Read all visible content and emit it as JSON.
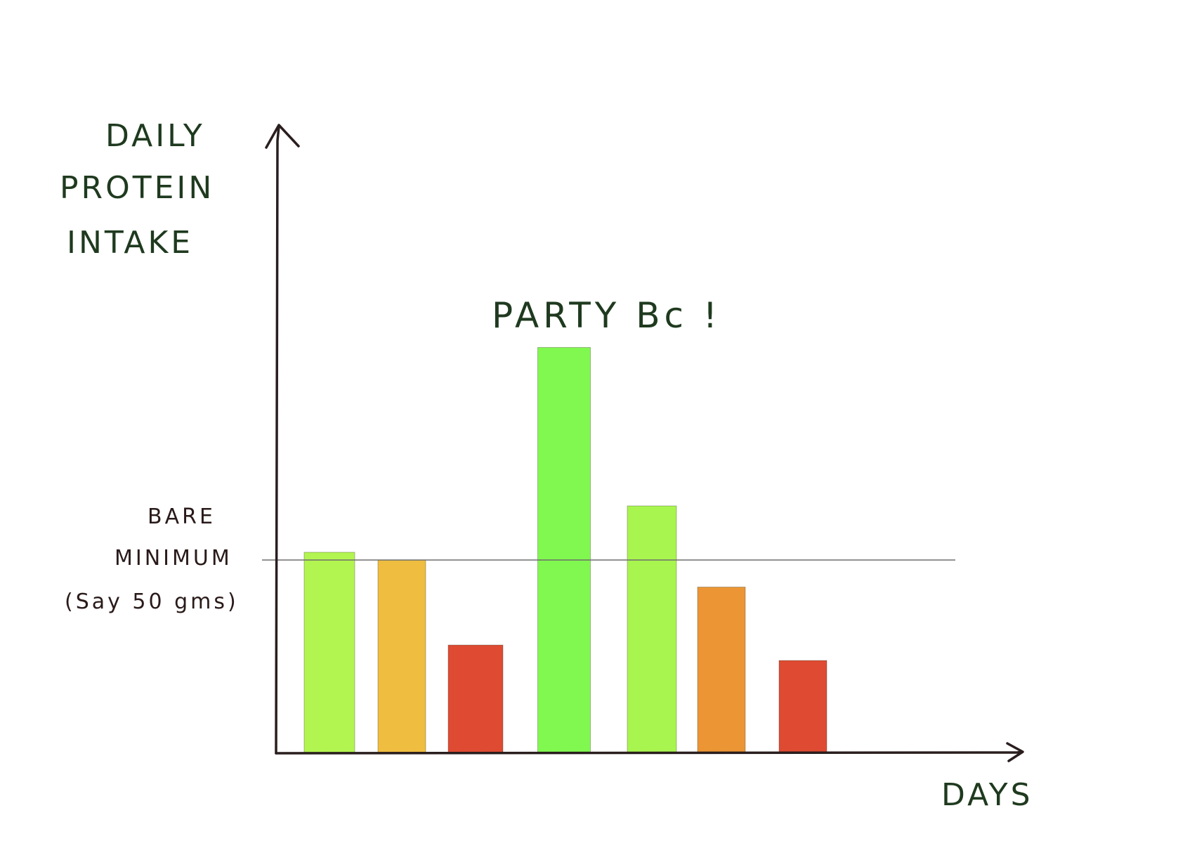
{
  "chart_data": {
    "type": "bar",
    "ylabel_lines": [
      "DAILY",
      "PROTEIN",
      "INTAKE"
    ],
    "xlabel": "DAYS",
    "categories": [
      "",
      "",
      "",
      "",
      "",
      "",
      ""
    ],
    "values": [
      52,
      50,
      28,
      105,
      64,
      43,
      24
    ],
    "bar_colors": [
      "#b3f550",
      "#efbd3f",
      "#df4a32",
      "#80f850",
      "#a8f550",
      "#ec9534",
      "#df4a32"
    ],
    "ylim": [
      0,
      150
    ],
    "grid": false,
    "reference_line": {
      "value": 50,
      "label_lines": [
        "BARE",
        "MINIMUM",
        "(Say 50 gms)"
      ],
      "color": "#6e6e6e"
    },
    "annotation": {
      "text": "PARTY Bc !",
      "bar_index": 3,
      "color": "#7ee858"
    },
    "axis_color": "#2a1e1e"
  }
}
